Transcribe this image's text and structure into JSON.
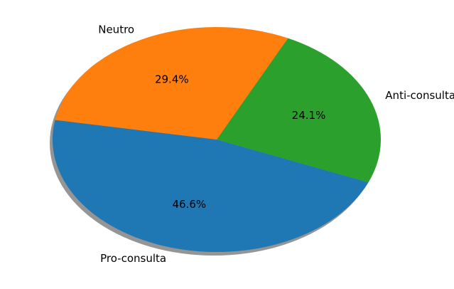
{
  "chart_data": {
    "type": "pie",
    "categories": [
      "Pro-consulta",
      "Anti-consulta",
      "Neutro"
    ],
    "values": [
      46.6,
      24.1,
      29.4
    ],
    "percent_labels": [
      "46.6%",
      "24.1%",
      "29.4%"
    ],
    "colors": [
      "#1f77b4",
      "#2ca02c",
      "#ff7f0e"
    ],
    "shadow": true,
    "shadow_color": "#8a8a8a",
    "start_angle_deg": 170,
    "direction": "counterclockwise",
    "legend": "none"
  }
}
